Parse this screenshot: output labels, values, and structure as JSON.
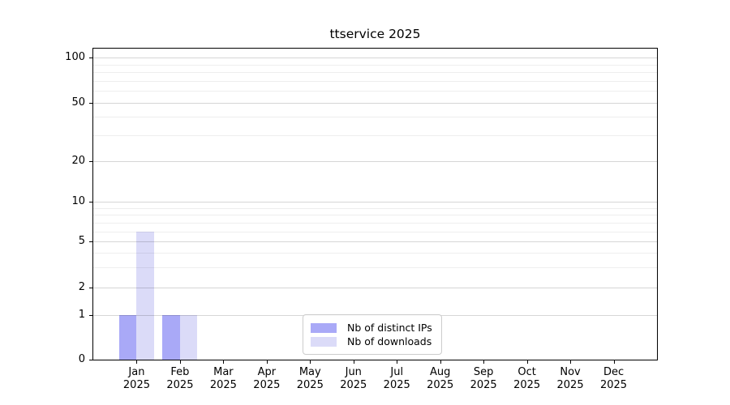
{
  "chart_data": {
    "type": "bar",
    "title": "ttservice 2025",
    "categories": [
      "Jan",
      "Feb",
      "Mar",
      "Apr",
      "May",
      "Jun",
      "Jul",
      "Aug",
      "Sep",
      "Oct",
      "Nov",
      "Dec"
    ],
    "x_year_label": "2025",
    "series": [
      {
        "name": "Nb of distinct IPs",
        "color": "#a9a9f7",
        "values": [
          1,
          1,
          0,
          0,
          0,
          0,
          0,
          0,
          0,
          0,
          0,
          0
        ]
      },
      {
        "name": "Nb of downloads",
        "color": "#dbdbf8",
        "values": [
          6,
          1,
          0,
          0,
          0,
          0,
          0,
          0,
          0,
          0,
          0,
          0
        ]
      }
    ],
    "y_axis": {
      "ticks": [
        0,
        1,
        2,
        5,
        10,
        20,
        50,
        100
      ],
      "minor_gridlines": [
        3,
        4,
        6,
        7,
        8,
        9,
        30,
        40,
        60,
        70,
        80,
        90
      ],
      "scale": "log-like",
      "ylim": [
        0,
        105
      ]
    },
    "y_scale_anchors": {
      "values": [
        0,
        1,
        2,
        5,
        10,
        20,
        50,
        100
      ],
      "fractions": [
        0,
        0.143,
        0.231,
        0.379,
        0.507,
        0.639,
        0.826,
        0.971
      ]
    },
    "xlabel": "",
    "ylabel": "",
    "grid": true,
    "legend_position": "lower center"
  }
}
